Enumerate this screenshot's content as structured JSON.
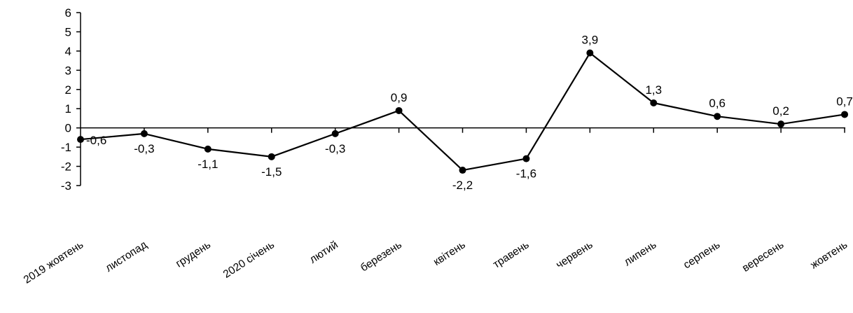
{
  "chart_data": {
    "type": "line",
    "categories": [
      "2019 жовтень",
      "листопад",
      "грудень",
      "2020 січень",
      "лютий",
      "березень",
      "квітень",
      "травень",
      "червень",
      "липень",
      "серпень",
      "вересень",
      "жовтень"
    ],
    "values": [
      -0.6,
      -0.3,
      -1.1,
      -1.5,
      -0.3,
      0.9,
      -2.2,
      -1.6,
      3.9,
      1.3,
      0.6,
      0.2,
      0.7
    ],
    "data_labels": [
      "-0,6",
      "-0,3",
      "-1,1",
      "-1,5",
      "-0,3",
      "0,9",
      "-2,2",
      "-1,6",
      "3,9",
      "1,3",
      "0,6",
      "0,2",
      "0,7"
    ],
    "label_position": [
      "below",
      "below",
      "below",
      "below",
      "below",
      "above",
      "below",
      "below",
      "above",
      "above",
      "above",
      "above",
      "above"
    ],
    "y_ticks": [
      "6",
      "5",
      "4",
      "3",
      "2",
      "1",
      "0",
      "-1",
      "-2",
      "-3"
    ],
    "ylim": [
      -3,
      6
    ],
    "title": "",
    "xlabel": "",
    "ylabel": "",
    "grid": false,
    "legend": "none",
    "colors": {
      "line": "#000000",
      "marker": "#000000",
      "axis": "#000000"
    }
  }
}
